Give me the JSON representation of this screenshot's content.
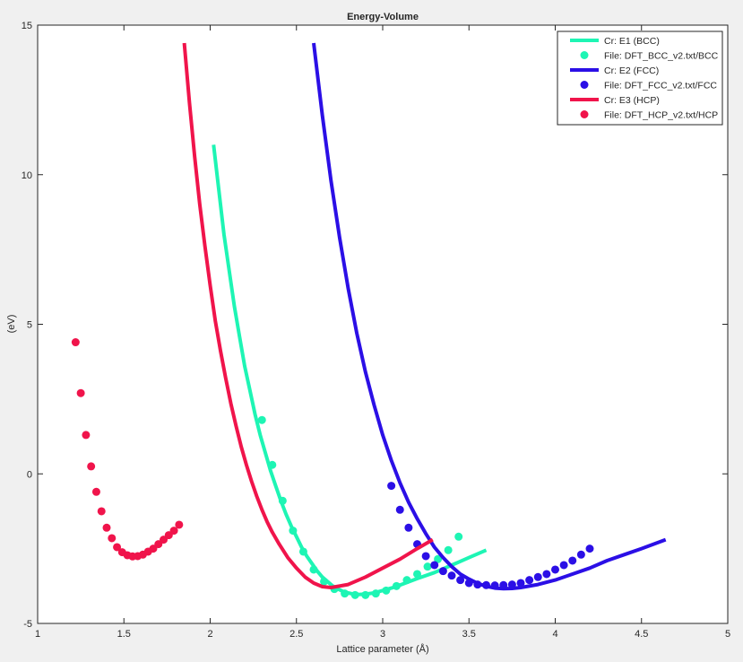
{
  "window": {
    "background": "#f0f0f0"
  },
  "chart_data": {
    "type": "line",
    "title": "Energy-Volume",
    "xlabel": "Lattice parameter (Å)",
    "ylabel": "(eV)",
    "xlim": [
      1,
      5
    ],
    "ylim": [
      -5,
      15
    ],
    "xticks": [
      1,
      1.5,
      2,
      2.5,
      3,
      3.5,
      4,
      4.5,
      5
    ],
    "xtick_labels": [
      "1",
      "1.5",
      "2",
      "2.5",
      "3",
      "3.5",
      "4",
      "4.5",
      "5"
    ],
    "yticks": [
      -5,
      0,
      5,
      10,
      15
    ],
    "ytick_labels": [
      "-5",
      "0",
      "5",
      "10",
      "15"
    ],
    "grid": false,
    "legend_position": "top-right",
    "series": [
      {
        "name": "Cr: E1 (BCC)",
        "kind": "line",
        "color": "#1ef5b4",
        "x": [
          2.02,
          2.05,
          2.08,
          2.11,
          2.14,
          2.17,
          2.2,
          2.23,
          2.26,
          2.29,
          2.32,
          2.35,
          2.38,
          2.41,
          2.44,
          2.47,
          2.5,
          2.53,
          2.56,
          2.59,
          2.62,
          2.65,
          2.68,
          2.71,
          2.74,
          2.77,
          2.8,
          2.83,
          2.86,
          2.9,
          2.95,
          3.0,
          3.05,
          3.1,
          3.2,
          3.3,
          3.4,
          3.5,
          3.6
        ],
        "y": [
          11.0,
          9.5,
          8.0,
          6.8,
          5.6,
          4.6,
          3.6,
          2.8,
          2.0,
          1.3,
          0.7,
          0.1,
          -0.4,
          -0.9,
          -1.35,
          -1.75,
          -2.1,
          -2.45,
          -2.75,
          -3.0,
          -3.25,
          -3.45,
          -3.6,
          -3.75,
          -3.85,
          -3.93,
          -3.98,
          -4.02,
          -4.03,
          -4.02,
          -3.98,
          -3.9,
          -3.82,
          -3.72,
          -3.5,
          -3.3,
          -3.05,
          -2.8,
          -2.55
        ]
      },
      {
        "name": "File: DFT_BCC_v2.txt/BCC",
        "kind": "scatter",
        "color": "#1ef5b4",
        "x": [
          2.3,
          2.36,
          2.42,
          2.48,
          2.54,
          2.6,
          2.66,
          2.72,
          2.78,
          2.84,
          2.9,
          2.96,
          3.02,
          3.08,
          3.14,
          3.2,
          3.26,
          3.32,
          3.38,
          3.44
        ],
        "y": [
          1.8,
          0.3,
          -0.9,
          -1.9,
          -2.6,
          -3.2,
          -3.6,
          -3.85,
          -4.0,
          -4.05,
          -4.05,
          -4.0,
          -3.9,
          -3.75,
          -3.55,
          -3.35,
          -3.1,
          -2.85,
          -2.55,
          -2.1
        ]
      },
      {
        "name": "Cr: E2 (FCC)",
        "kind": "line",
        "color": "#2b0fe6",
        "x": [
          2.6,
          2.65,
          2.7,
          2.75,
          2.8,
          2.85,
          2.9,
          2.95,
          3.0,
          3.05,
          3.1,
          3.15,
          3.2,
          3.25,
          3.3,
          3.35,
          3.4,
          3.45,
          3.5,
          3.55,
          3.6,
          3.65,
          3.7,
          3.75,
          3.8,
          3.9,
          4.0,
          4.1,
          4.2,
          4.3,
          4.4,
          4.5,
          4.64
        ],
        "y": [
          14.4,
          12.0,
          9.8,
          7.9,
          6.2,
          4.7,
          3.4,
          2.3,
          1.3,
          0.45,
          -0.3,
          -0.95,
          -1.5,
          -2.0,
          -2.45,
          -2.8,
          -3.1,
          -3.35,
          -3.52,
          -3.66,
          -3.76,
          -3.82,
          -3.84,
          -3.83,
          -3.8,
          -3.7,
          -3.55,
          -3.35,
          -3.15,
          -2.9,
          -2.7,
          -2.5,
          -2.2
        ]
      },
      {
        "name": "File: DFT_FCC_v2.txt/FCC",
        "kind": "scatter",
        "color": "#2b0fe6",
        "x": [
          3.05,
          3.1,
          3.15,
          3.2,
          3.25,
          3.3,
          3.35,
          3.4,
          3.45,
          3.5,
          3.55,
          3.6,
          3.65,
          3.7,
          3.75,
          3.8,
          3.85,
          3.9,
          3.95,
          4.0,
          4.05,
          4.1,
          4.15,
          4.2
        ],
        "y": [
          -0.4,
          -1.2,
          -1.8,
          -2.35,
          -2.75,
          -3.05,
          -3.25,
          -3.4,
          -3.55,
          -3.65,
          -3.7,
          -3.72,
          -3.73,
          -3.72,
          -3.7,
          -3.65,
          -3.55,
          -3.45,
          -3.35,
          -3.2,
          -3.05,
          -2.9,
          -2.7,
          -2.5
        ]
      },
      {
        "name": "Cr: E3 (HCP)",
        "kind": "line",
        "color": "#f0144b",
        "x": [
          1.85,
          1.88,
          1.91,
          1.94,
          1.97,
          2.0,
          2.03,
          2.06,
          2.09,
          2.12,
          2.15,
          2.18,
          2.21,
          2.24,
          2.27,
          2.3,
          2.33,
          2.36,
          2.4,
          2.45,
          2.5,
          2.55,
          2.6,
          2.65,
          2.7,
          2.8,
          2.9,
          3.0,
          3.1,
          3.2,
          3.29
        ],
        "y": [
          14.4,
          12.4,
          10.6,
          9.0,
          7.6,
          6.3,
          5.1,
          4.1,
          3.2,
          2.35,
          1.6,
          0.9,
          0.3,
          -0.25,
          -0.75,
          -1.2,
          -1.6,
          -1.95,
          -2.35,
          -2.8,
          -3.15,
          -3.45,
          -3.65,
          -3.77,
          -3.8,
          -3.7,
          -3.45,
          -3.15,
          -2.85,
          -2.5,
          -2.2
        ]
      },
      {
        "name": "File: DFT_HCP_v2.txt/HCP",
        "kind": "scatter",
        "color": "#f0144b",
        "x": [
          1.22,
          1.25,
          1.28,
          1.31,
          1.34,
          1.37,
          1.4,
          1.43,
          1.46,
          1.49,
          1.52,
          1.55,
          1.58,
          1.61,
          1.64,
          1.67,
          1.7,
          1.73,
          1.76,
          1.79,
          1.82
        ],
        "y": [
          4.4,
          2.7,
          1.3,
          0.25,
          -0.6,
          -1.25,
          -1.8,
          -2.15,
          -2.45,
          -2.62,
          -2.72,
          -2.76,
          -2.75,
          -2.7,
          -2.6,
          -2.5,
          -2.35,
          -2.2,
          -2.05,
          -1.9,
          -1.7
        ]
      }
    ]
  }
}
